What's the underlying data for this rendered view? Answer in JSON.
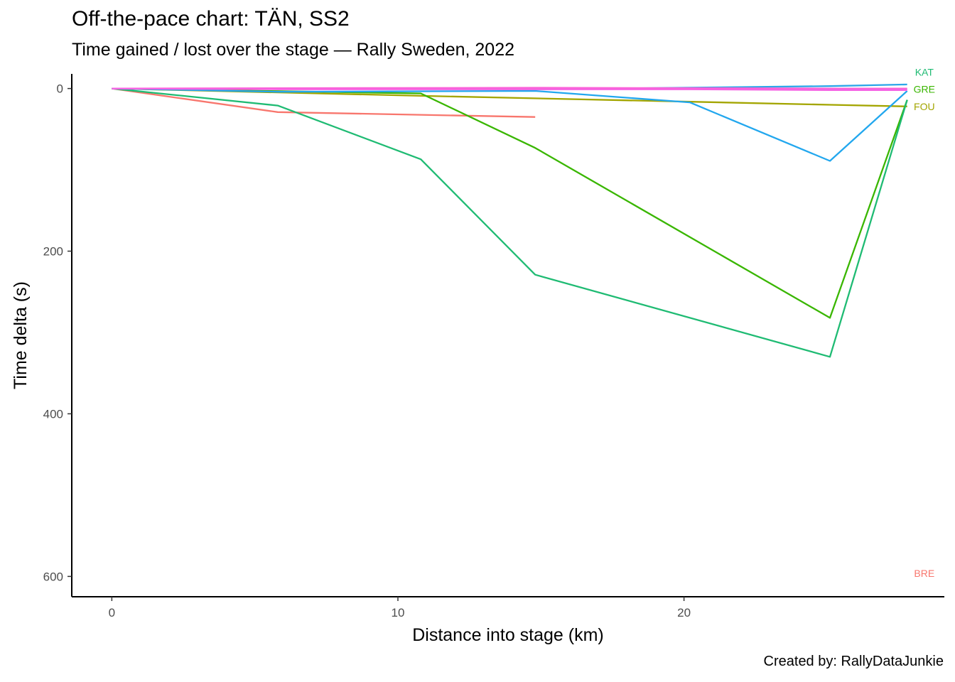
{
  "header": {
    "title": "Off-the-pace chart: TÄN, SS2",
    "subtitle": "Time gained / lost over the stage — Rally Sweden, 2022"
  },
  "caption": "Created by: RallyDataJunkie",
  "chart_data": {
    "type": "line",
    "title": "Off-the-pace chart: TÄN, SS2",
    "subtitle": "Time gained / lost over the stage — Rally Sweden, 2022",
    "xlabel": "Distance into stage (km)",
    "ylabel": "Time delta (s)",
    "xlim": [
      -1.4,
      29.1
    ],
    "ylim": [
      -18,
      625
    ],
    "y_reversed": true,
    "x_ticks": [
      0,
      10,
      20
    ],
    "y_ticks": [
      0,
      200,
      400,
      600
    ],
    "grid": false,
    "legend": "none (series labelled at line ends)",
    "series": [
      {
        "name": "BRE",
        "color": "#F8766D",
        "x": [
          0,
          5.8,
          14.8
        ],
        "y": [
          0,
          29,
          35
        ],
        "label_at": [
          28.4,
          596
        ]
      },
      {
        "name": "FOU",
        "color": "#A3A500",
        "x": [
          0,
          10.8,
          25.1,
          27.8
        ],
        "y": [
          0,
          9,
          20,
          22
        ],
        "label_at": [
          28.4,
          22
        ]
      },
      {
        "name": "GRE",
        "color": "#39B600",
        "x": [
          0,
          10.8,
          14.8,
          25.1,
          27.8
        ],
        "y": [
          0,
          6,
          73,
          282,
          14
        ],
        "label_at": [
          28.4,
          1
        ]
      },
      {
        "name": "KAT",
        "color": "#1FBB73",
        "x": [
          0,
          5.8,
          10.8,
          14.8,
          25.1,
          27.8
        ],
        "y": [
          0,
          21,
          87,
          229,
          330,
          14
        ],
        "label_at": [
          28.4,
          -20
        ]
      },
      {
        "name": "",
        "color": "#22A7EE",
        "x": [
          0,
          5.8,
          14.8,
          20.2,
          25.1,
          27.8
        ],
        "y": [
          0,
          4,
          3,
          17,
          89,
          3
        ],
        "label_at": null
      },
      {
        "name": "",
        "color": "#2DA6E8",
        "x": [
          0,
          14.8,
          25.1,
          27.8
        ],
        "y": [
          0,
          1,
          -3,
          -5
        ],
        "label_at": null
      },
      {
        "name": "",
        "color": "#A58AFF",
        "x": [
          0,
          14.8,
          25.1,
          27.8
        ],
        "y": [
          0,
          0,
          1,
          1
        ],
        "label_at": null
      },
      {
        "name": "",
        "color": "#FB61D7",
        "x": [
          0,
          14.8,
          25.1,
          27.8
        ],
        "y": [
          0,
          -1,
          0,
          0
        ],
        "label_at": null
      },
      {
        "name": "",
        "color": "#F564E3",
        "x": [
          0,
          5.8,
          14.8,
          20.2,
          25.1,
          27.8
        ],
        "y": [
          0,
          1,
          1,
          1,
          2,
          2
        ],
        "label_at": null
      }
    ]
  }
}
